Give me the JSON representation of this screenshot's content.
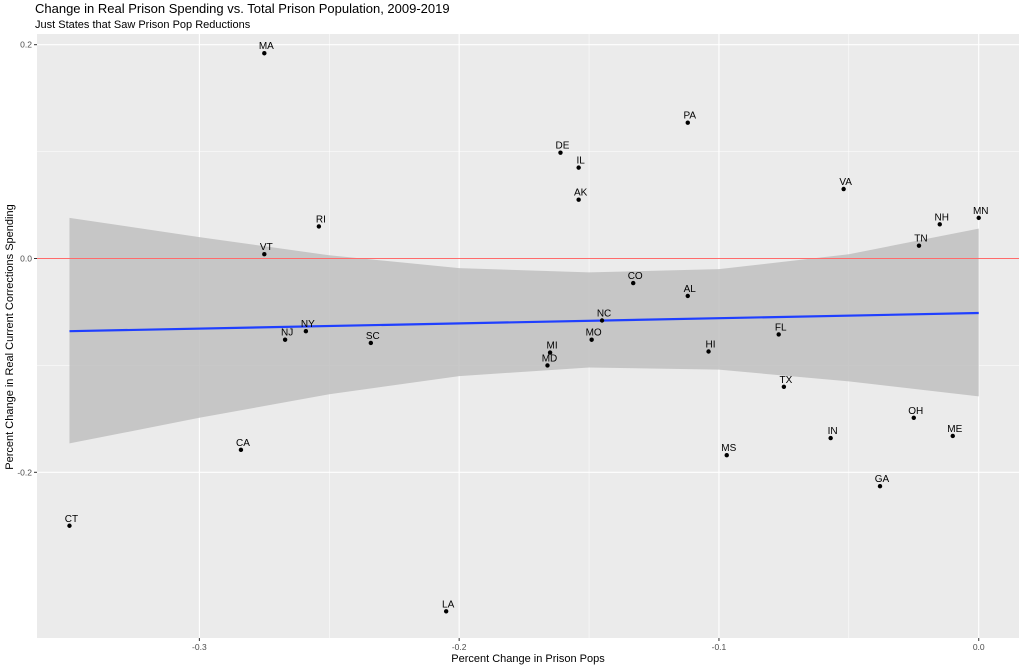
{
  "chart_data": {
    "type": "scatter",
    "title": "Change in Real Prison Spending vs. Total Prison Population, 2009-2019",
    "subtitle": "Just States that Saw Prison Pop Reductions",
    "xlabel": "Percent Change in Prison Pops",
    "ylabel": "Percent Change in Real Current Corrections Spending",
    "xlim": [
      -0.3625,
      0.0155
    ],
    "ylim": [
      -0.355,
      0.21
    ],
    "x_ticks": [
      -0.3,
      -0.2,
      -0.1,
      0.0
    ],
    "x_tick_labels": [
      "-0.3",
      "-0.2",
      "-0.1",
      "0.0"
    ],
    "y_ticks": [
      0.2,
      0.0,
      -0.2
    ],
    "y_tick_labels": [
      "0.2",
      "0.0",
      "-0.2"
    ],
    "grid": true,
    "points": [
      {
        "label": "MA",
        "x": -0.275,
        "y": 0.192
      },
      {
        "label": "PA",
        "x": -0.112,
        "y": 0.127
      },
      {
        "label": "DE",
        "x": -0.161,
        "y": 0.099
      },
      {
        "label": "IL",
        "x": -0.154,
        "y": 0.085
      },
      {
        "label": "VA",
        "x": -0.052,
        "y": 0.065
      },
      {
        "label": "AK",
        "x": -0.154,
        "y": 0.055
      },
      {
        "label": "MN",
        "x": 0.0,
        "y": 0.038
      },
      {
        "label": "NH",
        "x": -0.015,
        "y": 0.032
      },
      {
        "label": "RI",
        "x": -0.254,
        "y": 0.03
      },
      {
        "label": "TN",
        "x": -0.023,
        "y": 0.012
      },
      {
        "label": "VT",
        "x": -0.275,
        "y": 0.004
      },
      {
        "label": "CO",
        "x": -0.133,
        "y": -0.023
      },
      {
        "label": "AL",
        "x": -0.112,
        "y": -0.035
      },
      {
        "label": "NC",
        "x": -0.145,
        "y": -0.058
      },
      {
        "label": "NY",
        "x": -0.259,
        "y": -0.068
      },
      {
        "label": "FL",
        "x": -0.077,
        "y": -0.071
      },
      {
        "label": "NJ",
        "x": -0.267,
        "y": -0.076
      },
      {
        "label": "MO",
        "x": -0.149,
        "y": -0.076
      },
      {
        "label": "SC",
        "x": -0.234,
        "y": -0.079
      },
      {
        "label": "MI",
        "x": -0.165,
        "y": -0.088
      },
      {
        "label": "HI",
        "x": -0.104,
        "y": -0.087
      },
      {
        "label": "MD",
        "x": -0.166,
        "y": -0.1
      },
      {
        "label": "TX",
        "x": -0.075,
        "y": -0.12
      },
      {
        "label": "OH",
        "x": -0.025,
        "y": -0.149
      },
      {
        "label": "ME",
        "x": -0.01,
        "y": -0.166
      },
      {
        "label": "IN",
        "x": -0.057,
        "y": -0.168
      },
      {
        "label": "CA",
        "x": -0.284,
        "y": -0.179
      },
      {
        "label": "MS",
        "x": -0.097,
        "y": -0.184
      },
      {
        "label": "GA",
        "x": -0.038,
        "y": -0.213
      },
      {
        "label": "CT",
        "x": -0.35,
        "y": -0.25
      },
      {
        "label": "LA",
        "x": -0.205,
        "y": -0.33
      }
    ],
    "reference_line": {
      "y": 0.0,
      "color": "#ff6b6b"
    },
    "trend_line": {
      "x": [
        -0.35,
        0.0
      ],
      "y": [
        -0.068,
        -0.051
      ],
      "color": "#1f3fff"
    },
    "confidence_band": {
      "x": [
        -0.35,
        -0.3,
        -0.25,
        -0.2,
        -0.15,
        -0.1,
        -0.05,
        0.0
      ],
      "upper": [
        0.038,
        0.02,
        0.003,
        -0.009,
        -0.013,
        -0.01,
        0.004,
        0.028
      ],
      "lower": [
        -0.173,
        -0.149,
        -0.127,
        -0.11,
        -0.102,
        -0.104,
        -0.115,
        -0.129
      ],
      "color": "#bfbfbf"
    },
    "colors": {
      "panel_bg": "#ebebeb",
      "grid": "#ffffff",
      "point": "#000000"
    }
  }
}
